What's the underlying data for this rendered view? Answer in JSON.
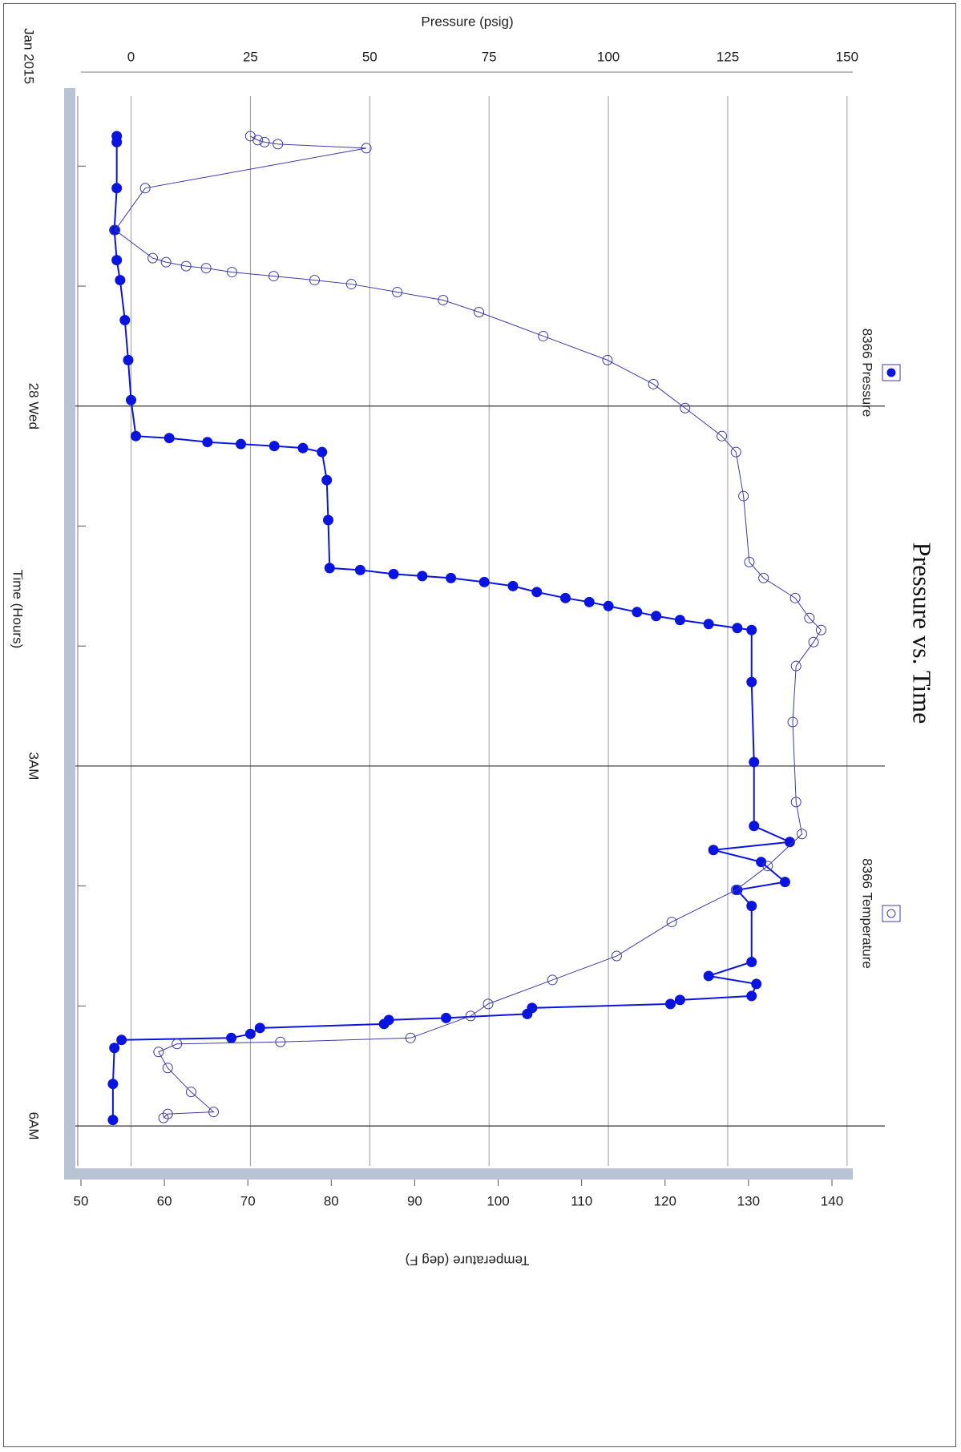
{
  "chart_data": {
    "type": "line",
    "title": "Pressure vs. Time",
    "x_label": "Time (Hours)",
    "date_label": "Jan 2015",
    "y_label": "Pressure (psig)",
    "y2_label": "Temperature (deg F)",
    "xlim": [
      "2015-01-27T21:25",
      "2015-01-28T06:20"
    ],
    "xticks": [
      {
        "value": "2015-01-28T00:00",
        "label": "28 Wed"
      },
      {
        "value": "2015-01-28T03:00",
        "label": "3AM"
      },
      {
        "value": "2015-01-28T06:00",
        "label": "6AM"
      }
    ],
    "xminorticks": [
      "2015-01-27T22:00",
      "2015-01-27T23:00",
      "2015-01-28T01:00",
      "2015-01-28T02:00",
      "2015-01-28T04:00",
      "2015-01-28T05:00"
    ],
    "ylim": [
      -10.5,
      151.2
    ],
    "yticks": [
      0,
      25,
      50,
      75,
      100,
      125,
      150
    ],
    "y2lim": [
      50,
      142.5
    ],
    "y2ticks": [
      50,
      60,
      70,
      80,
      90,
      100,
      110,
      120,
      130,
      140
    ],
    "grid": true,
    "legend": "top",
    "series": [
      {
        "name": "8366 Pressure",
        "color": "#0a14e0",
        "marker": "filled",
        "x": [
          "2015-01-27T21:45",
          "2015-01-27T21:48",
          "2015-01-27T22:11",
          "2015-01-27T22:32",
          "2015-01-27T22:47",
          "2015-01-27T22:57",
          "2015-01-27T23:17",
          "2015-01-27T23:37",
          "2015-01-27T23:57",
          "2015-01-28T00:15",
          "2015-01-28T00:16",
          "2015-01-28T00:18",
          "2015-01-28T00:19",
          "2015-01-28T00:20",
          "2015-01-28T00:21",
          "2015-01-28T00:23",
          "2015-01-28T00:37",
          "2015-01-28T00:57",
          "2015-01-28T01:21",
          "2015-01-28T01:22",
          "2015-01-28T01:24",
          "2015-01-28T01:25",
          "2015-01-28T01:26",
          "2015-01-28T01:28",
          "2015-01-28T01:30",
          "2015-01-28T01:33",
          "2015-01-28T01:36",
          "2015-01-28T01:38",
          "2015-01-28T01:40",
          "2015-01-28T01:43",
          "2015-01-28T01:45",
          "2015-01-28T01:47",
          "2015-01-28T01:49",
          "2015-01-28T01:51",
          "2015-01-28T01:52",
          "2015-01-28T02:18",
          "2015-01-28T02:58",
          "2015-01-28T03:30",
          "2015-01-28T03:38",
          "2015-01-28T03:42",
          "2015-01-28T03:48",
          "2015-01-28T03:58",
          "2015-01-28T04:02",
          "2015-01-28T04:10",
          "2015-01-28T04:38",
          "2015-01-28T04:45",
          "2015-01-28T04:49",
          "2015-01-28T04:55",
          "2015-01-28T04:57",
          "2015-01-28T04:59",
          "2015-01-28T05:01",
          "2015-01-28T05:04",
          "2015-01-28T05:06",
          "2015-01-28T05:07",
          "2015-01-28T05:09",
          "2015-01-28T05:11",
          "2015-01-28T05:14",
          "2015-01-28T05:16",
          "2015-01-28T05:17",
          "2015-01-28T05:21",
          "2015-01-28T05:39",
          "2015-01-28T05:57"
        ],
        "values": [
          -3,
          -3,
          -3,
          -3.5,
          -3,
          -2.3,
          -1.3,
          -0.6,
          0,
          1,
          8,
          16,
          23,
          30,
          36,
          40,
          41,
          41.3,
          41.6,
          48,
          55,
          61,
          67,
          74,
          80,
          85,
          91,
          96,
          100,
          106,
          110,
          115,
          121,
          127,
          130,
          130,
          130.5,
          130.5,
          138,
          122,
          132,
          137,
          127,
          130,
          130,
          121,
          131,
          130,
          115,
          113,
          84,
          83,
          66,
          54,
          53,
          27,
          25,
          21,
          -2,
          -3.5,
          -3.8,
          -3.8
        ]
      },
      {
        "name": "8366 Temperature",
        "color": "#3b3ba8",
        "marker": "open",
        "axis": "y2",
        "x": [
          "2015-01-27T21:45",
          "2015-01-27T21:47",
          "2015-01-27T21:48",
          "2015-01-27T21:49",
          "2015-01-27T21:51",
          "2015-01-27T22:11",
          "2015-01-27T22:32",
          "2015-01-27T22:46",
          "2015-01-27T22:48",
          "2015-01-27T22:50",
          "2015-01-27T22:51",
          "2015-01-27T22:53",
          "2015-01-27T22:55",
          "2015-01-27T22:57",
          "2015-01-27T22:59",
          "2015-01-27T23:03",
          "2015-01-27T23:07",
          "2015-01-27T23:13",
          "2015-01-27T23:25",
          "2015-01-27T23:37",
          "2015-01-27T23:49",
          "2015-01-28T00:01",
          "2015-01-28T00:15",
          "2015-01-28T00:23",
          "2015-01-28T00:45",
          "2015-01-28T01:18",
          "2015-01-28T01:26",
          "2015-01-28T01:36",
          "2015-01-28T01:46",
          "2015-01-28T01:52",
          "2015-01-28T01:58",
          "2015-01-28T02:10",
          "2015-01-28T02:38",
          "2015-01-28T03:18",
          "2015-01-28T03:34",
          "2015-01-28T03:50",
          "2015-01-28T04:02",
          "2015-01-28T04:18",
          "2015-01-28T04:35",
          "2015-01-28T04:47",
          "2015-01-28T04:59",
          "2015-01-28T05:05",
          "2015-01-28T05:16",
          "2015-01-28T05:18",
          "2015-01-28T05:19",
          "2015-01-28T05:23",
          "2015-01-28T05:31",
          "2015-01-28T05:43",
          "2015-01-28T05:53",
          "2015-01-28T05:54",
          "2015-01-28T05:56"
        ],
        "values": [
          70.3,
          71.2,
          72,
          73.6,
          84.2,
          57.7,
          54.1,
          58.6,
          60.2,
          62.6,
          65,
          68.1,
          73.1,
          78,
          82.4,
          87.9,
          93.4,
          97.7,
          105.4,
          113.1,
          118.6,
          122.4,
          126.8,
          128.5,
          129.4,
          130.1,
          131.8,
          135.6,
          137.3,
          138.7,
          137.8,
          135.7,
          135.3,
          135.7,
          136.4,
          132.3,
          128.5,
          120.8,
          114.2,
          106.5,
          98.8,
          96.7,
          89.5,
          73.9,
          61.5,
          59.3,
          60.4,
          63.2,
          65.9,
          60.4,
          59.9
        ]
      }
    ]
  }
}
